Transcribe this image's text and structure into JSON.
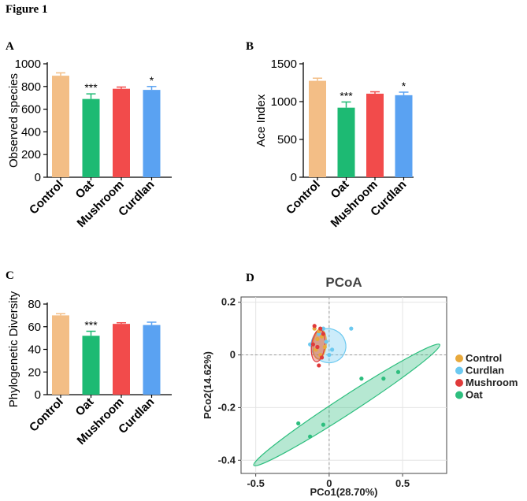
{
  "figure_title": "Figure 1",
  "chart_data": [
    {
      "panel": "A",
      "type": "bar",
      "title": "",
      "ylabel": "Observed species",
      "xlabel": "",
      "categories": [
        "Control",
        "Oat",
        "Mushroom",
        "Curdlan"
      ],
      "values": [
        895,
        690,
        780,
        770
      ],
      "errors": [
        25,
        45,
        15,
        30
      ],
      "colors": [
        "#F3BE86",
        "#1DBA73",
        "#F24B4B",
        "#5AA2F2"
      ],
      "significance": [
        "",
        "***",
        "",
        "*"
      ],
      "ylim": [
        0,
        1000
      ],
      "yticks": [
        0,
        200,
        400,
        600,
        800,
        1000
      ]
    },
    {
      "panel": "B",
      "type": "bar",
      "title": "",
      "ylabel": "Ace Index",
      "xlabel": "",
      "categories": [
        "Control",
        "Oat",
        "Mushroom",
        "Curdlan"
      ],
      "values": [
        1275,
        920,
        1105,
        1085
      ],
      "errors": [
        35,
        75,
        25,
        40
      ],
      "colors": [
        "#F3BE86",
        "#1DBA73",
        "#F24B4B",
        "#5AA2F2"
      ],
      "significance": [
        "",
        "***",
        "",
        "*"
      ],
      "ylim": [
        0,
        1500
      ],
      "yticks": [
        0,
        500,
        1000,
        1500
      ]
    },
    {
      "panel": "C",
      "type": "bar",
      "title": "",
      "ylabel": "Phylogenetic Diversity",
      "xlabel": "",
      "categories": [
        "Control",
        "Oat",
        "Mushroom",
        "Curdlan"
      ],
      "values": [
        70,
        52,
        62.5,
        61.5
      ],
      "errors": [
        1.5,
        4,
        1,
        2.5
      ],
      "colors": [
        "#F3BE86",
        "#1DBA73",
        "#F24B4B",
        "#5AA2F2"
      ],
      "significance": [
        "",
        "***",
        "",
        ""
      ],
      "ylim": [
        0,
        80
      ],
      "yticks": [
        0,
        20,
        40,
        60,
        80
      ]
    },
    {
      "panel": "D",
      "type": "scatter",
      "title": "PCoA",
      "xlabel": "PCo1(28.70%)",
      "ylabel": "PCo2(14.62%)",
      "xlim": [
        -0.6,
        0.8
      ],
      "ylim": [
        -0.45,
        0.22
      ],
      "xticks": [
        "-0.5",
        "0",
        "0.5"
      ],
      "xtick_values": [
        -0.5,
        0,
        0.5
      ],
      "yticks": [
        "0.2",
        "0",
        "-0.2",
        "-0.4"
      ],
      "ytick_values": [
        0.2,
        0,
        -0.2,
        -0.4
      ],
      "reference_lines": [
        0,
        0
      ],
      "series": [
        {
          "name": "Control",
          "color": "#E8A93C",
          "points": [
            [
              -0.1,
              0.1
            ],
            [
              -0.07,
              0.09
            ],
            [
              -0.05,
              0.07
            ],
            [
              -0.08,
              0.06
            ],
            [
              -0.03,
              0.03
            ],
            [
              -0.06,
              0.0
            ],
            [
              -0.09,
              0.02
            ]
          ],
          "ellipse": {
            "cx": -0.065,
            "cy": 0.04,
            "rx": 0.1,
            "ry": 0.045,
            "angle": 84
          }
        },
        {
          "name": "Curdlan",
          "color": "#6CC9F0",
          "points": [
            [
              0.15,
              0.1
            ],
            [
              -0.02,
              0.05
            ],
            [
              -0.13,
              0.04
            ],
            [
              -0.07,
              0.08
            ],
            [
              0.0,
              0.0
            ],
            [
              -0.04,
              0.1
            ],
            [
              0.02,
              0.02
            ]
          ],
          "ellipse": {
            "cx": -0.005,
            "cy": 0.035,
            "rx": 0.115,
            "ry": 0.12,
            "angle": 62
          }
        },
        {
          "name": "Mushroom",
          "color": "#E03A3A",
          "points": [
            [
              -0.1,
              0.11
            ],
            [
              -0.06,
              0.1
            ],
            [
              -0.04,
              0.08
            ],
            [
              -0.08,
              0.03
            ],
            [
              -0.11,
              0.04
            ],
            [
              -0.05,
              -0.01
            ],
            [
              -0.07,
              -0.04
            ]
          ],
          "ellipse": {
            "cx": -0.075,
            "cy": 0.035,
            "rx": 0.11,
            "ry": 0.045,
            "angle": 83
          }
        },
        {
          "name": "Oat",
          "color": "#2DBE7E",
          "points": [
            [
              0.47,
              -0.065
            ],
            [
              0.37,
              -0.09
            ],
            [
              0.22,
              -0.09
            ],
            [
              -0.04,
              -0.265
            ],
            [
              -0.21,
              -0.26
            ],
            [
              -0.13,
              -0.31
            ]
          ],
          "ellipse": {
            "cx": 0.12,
            "cy": -0.19,
            "rx": 0.755,
            "ry": 0.06,
            "angle": 33
          }
        }
      ]
    }
  ]
}
